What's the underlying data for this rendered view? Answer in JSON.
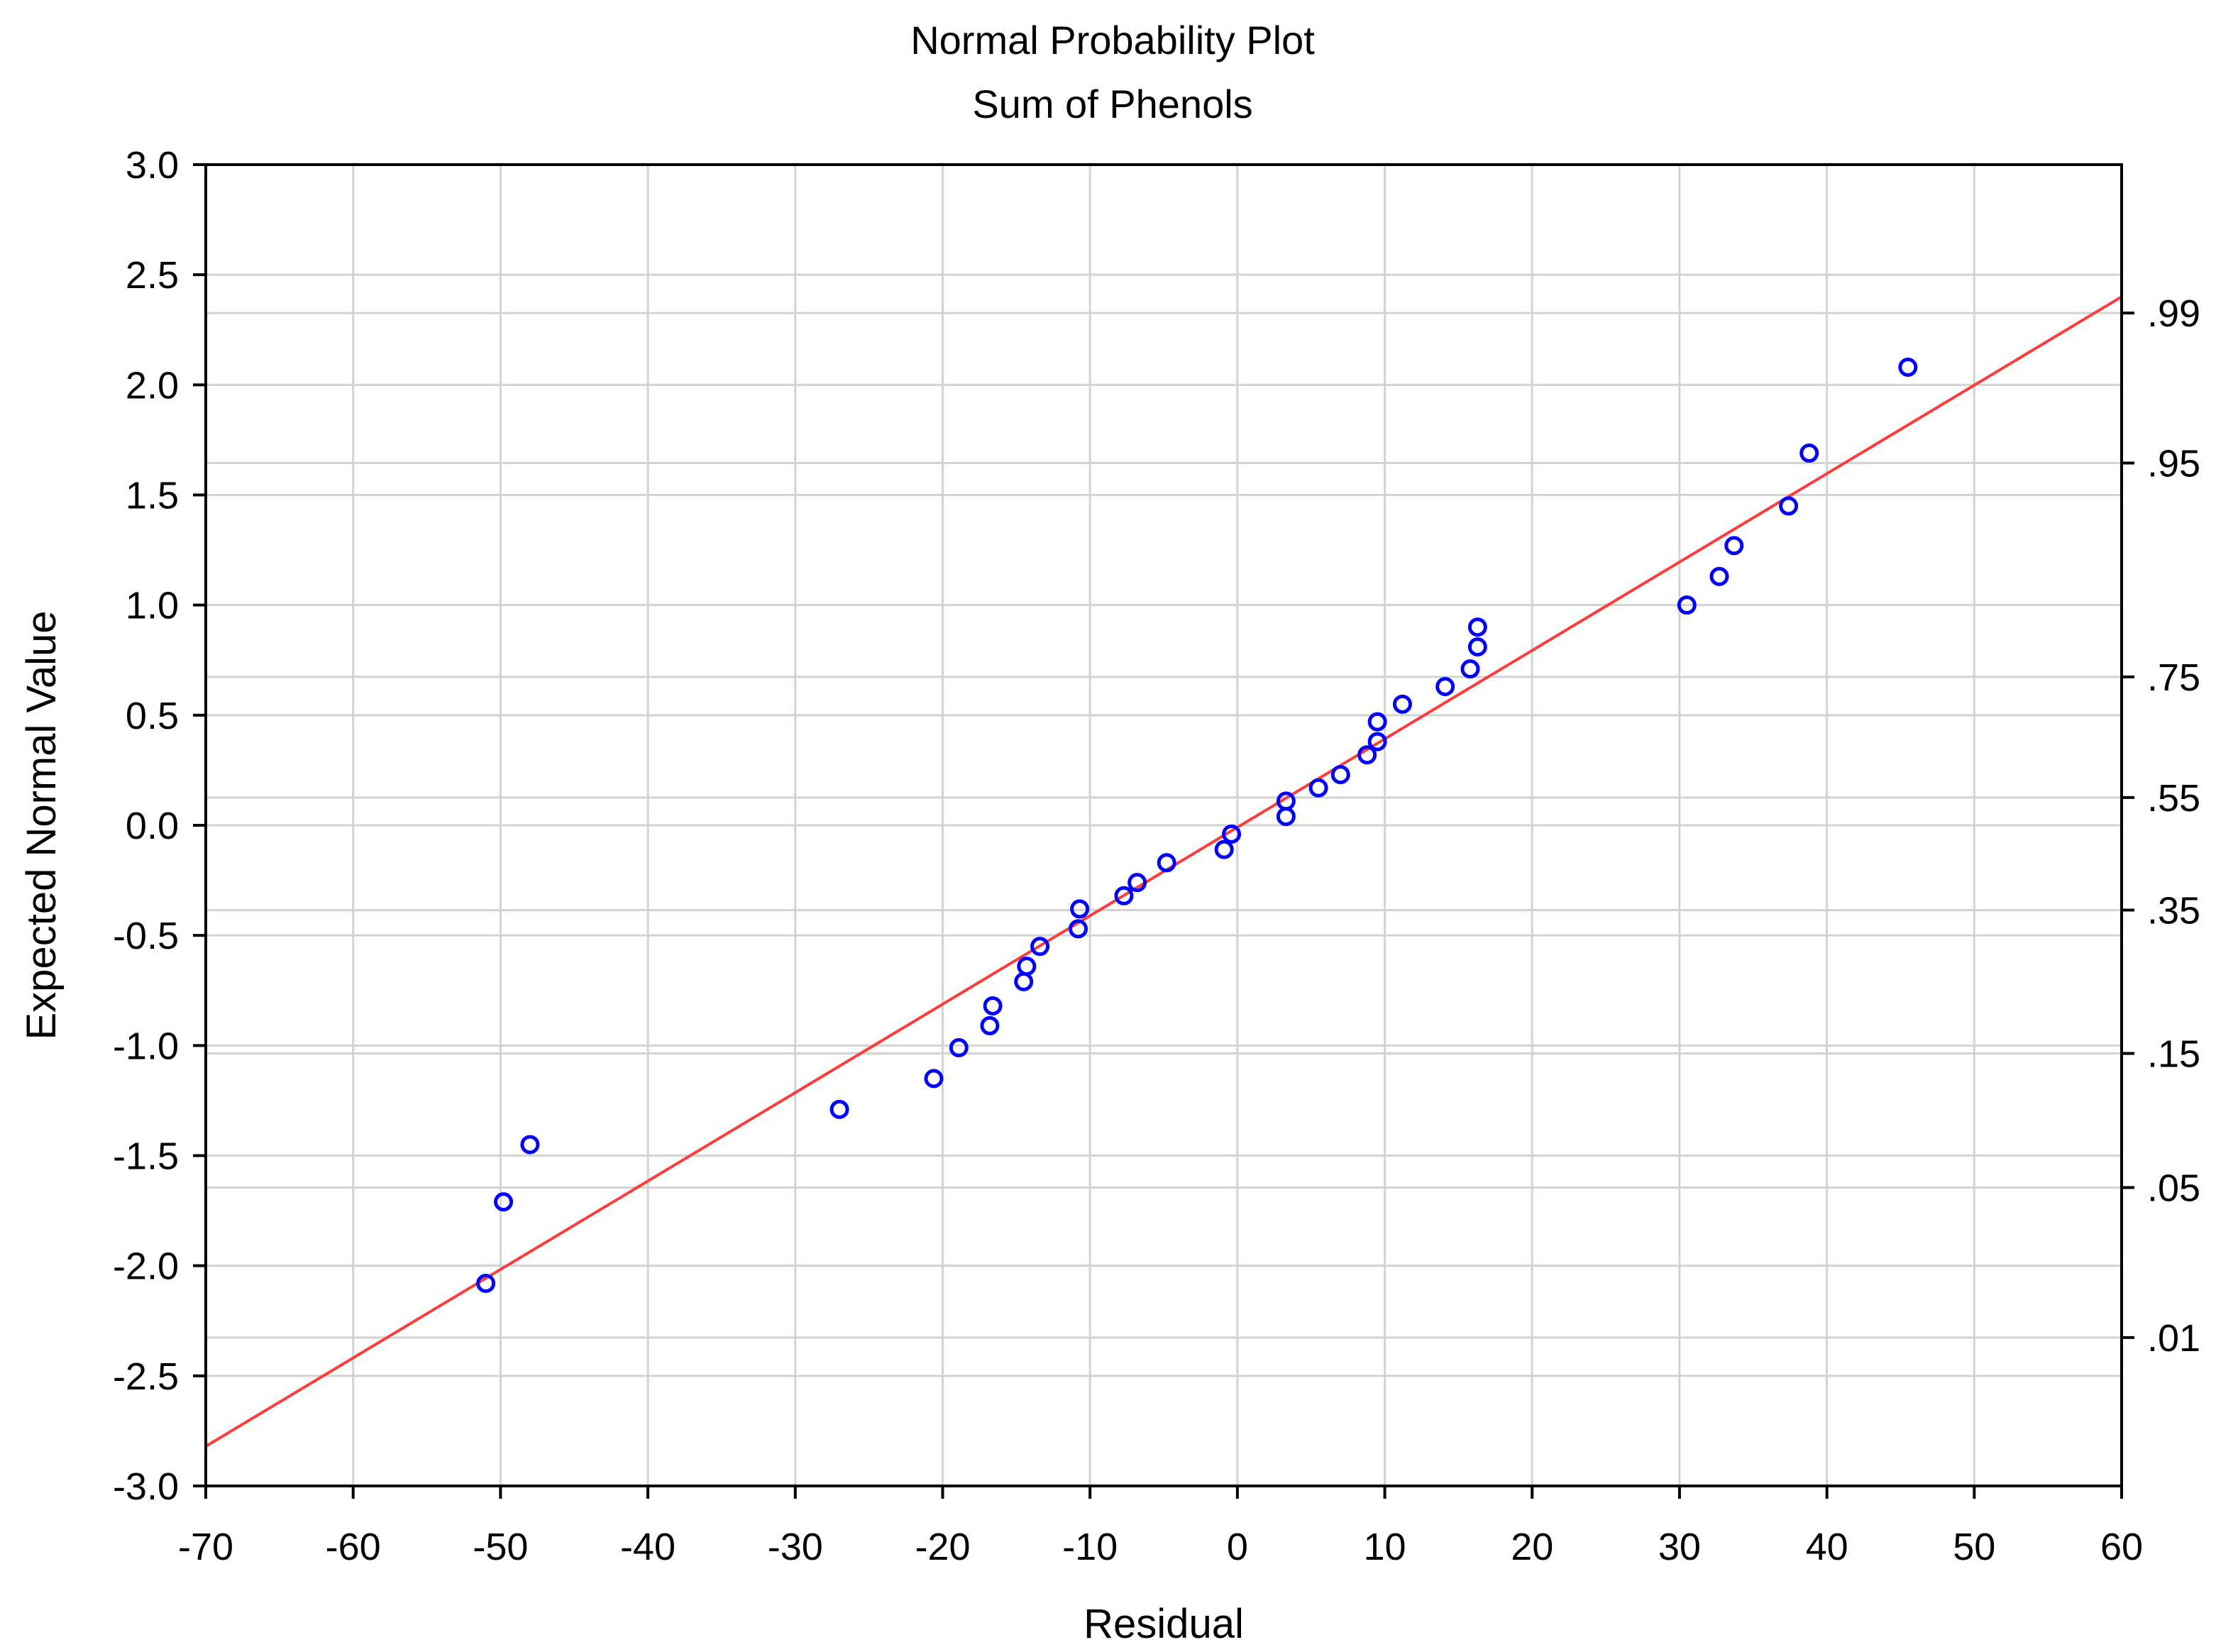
{
  "chart_data": {
    "type": "scatter",
    "title": "Normal Probability Plot",
    "subtitle": "Sum of Phenols",
    "xlabel": "Residual",
    "ylabel": "Expected Normal Value",
    "xlim": [
      -70,
      60
    ],
    "ylim": [
      -3.0,
      3.0
    ],
    "x_ticks": [
      -70,
      -60,
      -50,
      -40,
      -30,
      -20,
      -10,
      0,
      10,
      20,
      30,
      40,
      50,
      60
    ],
    "y_ticks": [
      3.0,
      2.5,
      2.0,
      1.5,
      1.0,
      0.5,
      0.0,
      -0.5,
      -1.0,
      -1.5,
      -2.0,
      -2.5,
      -3.0
    ],
    "y_tick_labels": [
      "3.0",
      "2.5",
      "2.0",
      "1.5",
      "1.0",
      "0.5",
      "0.0",
      "-0.5",
      "-1.0",
      "-1.5",
      "-2.0",
      "-2.5",
      "-3.0"
    ],
    "right_axis": {
      "labels": [
        ".99",
        ".95",
        ".75",
        ".55",
        ".35",
        ".15",
        ".05",
        ".01"
      ],
      "z_values": [
        2.326,
        1.645,
        0.674,
        0.126,
        -0.385,
        -1.036,
        -1.645,
        -2.326
      ]
    },
    "grid": true,
    "colors": {
      "points": "#0000ff",
      "fit_line": "#ff3c3c",
      "grid": "#d3d3d3",
      "frame": "#000000"
    },
    "fit_line": {
      "x": [
        -70,
        60
      ],
      "y": [
        -2.82,
        2.4
      ]
    },
    "points": {
      "x": [
        -51.0,
        -49.8,
        -48.0,
        -27.0,
        -20.6,
        -18.9,
        -16.8,
        -16.6,
        -14.5,
        -14.3,
        -13.4,
        -10.8,
        -10.7,
        -7.7,
        -6.8,
        -4.8,
        -0.9,
        -0.4,
        3.3,
        3.3,
        5.5,
        7.0,
        8.8,
        9.5,
        9.5,
        11.2,
        14.1,
        15.8,
        16.3,
        16.3,
        30.5,
        32.7,
        33.7,
        37.4,
        38.8,
        45.5
      ],
      "y": [
        -2.08,
        -1.71,
        -1.45,
        -1.29,
        -1.15,
        -1.01,
        -0.91,
        -0.82,
        -0.71,
        -0.64,
        -0.55,
        -0.47,
        -0.38,
        -0.32,
        -0.26,
        -0.17,
        -0.11,
        -0.04,
        0.04,
        0.11,
        0.17,
        0.23,
        0.32,
        0.38,
        0.47,
        0.55,
        0.63,
        0.71,
        0.81,
        0.9,
        1.0,
        1.13,
        1.27,
        1.45,
        1.69,
        2.08
      ]
    }
  }
}
